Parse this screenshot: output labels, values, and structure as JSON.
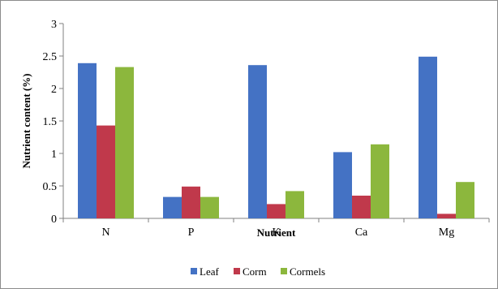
{
  "chart_data": {
    "type": "bar",
    "title": "",
    "xlabel": "Nutrient",
    "ylabel": "Nutrient content (%)",
    "ylim": [
      0,
      3
    ],
    "yticks": [
      "0",
      "0.5",
      "1",
      "1.5",
      "2",
      "2.5",
      "3"
    ],
    "categories": [
      "N",
      "P",
      "K",
      "Ca",
      "Mg"
    ],
    "series": [
      {
        "name": "Leaf",
        "color": "#4472C4",
        "values": [
          2.39,
          0.33,
          2.36,
          1.02,
          2.49
        ]
      },
      {
        "name": "Corm",
        "color": "#C0394B",
        "values": [
          1.43,
          0.49,
          0.22,
          0.35,
          0.07
        ]
      },
      {
        "name": "Cormels",
        "color": "#8CB73D",
        "values": [
          2.33,
          0.33,
          0.42,
          1.14,
          0.56
        ]
      }
    ],
    "grid": false,
    "legend_position": "bottom"
  }
}
